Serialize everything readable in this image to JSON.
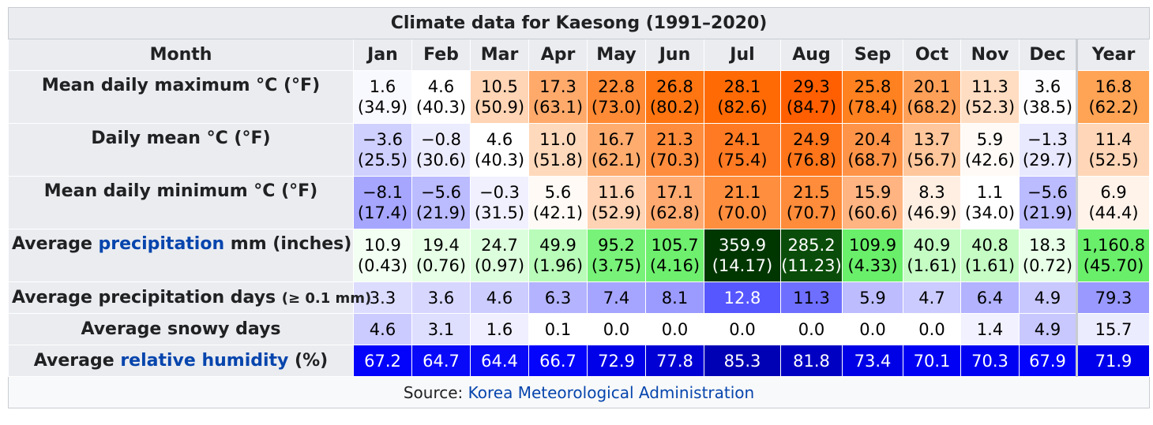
{
  "title": "Climate data for Kaesong (1991–2020)",
  "header": {
    "month_label": "Month",
    "months": [
      "Jan",
      "Feb",
      "Mar",
      "Apr",
      "May",
      "Jun",
      "Jul",
      "Aug",
      "Sep",
      "Oct",
      "Nov",
      "Dec"
    ],
    "year_label": "Year"
  },
  "rows": [
    {
      "label": "Mean daily maximum °C (°F)",
      "label_parts": {
        "prefix": "Mean daily maximum °C (°F)"
      },
      "primary": [
        "1.6",
        "4.6",
        "10.5",
        "17.3",
        "22.8",
        "26.8",
        "28.1",
        "29.3",
        "25.8",
        "20.1",
        "11.3",
        "3.6",
        "16.8"
      ],
      "secondary": [
        "(34.9)",
        "(40.3)",
        "(50.9)",
        "(63.1)",
        "(73.0)",
        "(80.2)",
        "(82.6)",
        "(84.7)",
        "(78.4)",
        "(68.2)",
        "(52.3)",
        "(38.5)",
        "(62.2)"
      ],
      "bg": [
        "#f8f8ff",
        "#ffffff",
        "#ffd5b5",
        "#ffaa6b",
        "#ff8b36",
        "#ff7511",
        "#ff6a05",
        "#ff5f00",
        "#ff811f",
        "#ffa058",
        "#ffddc2",
        "#fdfdff",
        "#ffa354"
      ],
      "fg": [
        "#000000",
        "#000000",
        "#000000",
        "#000000",
        "#000000",
        "#000000",
        "#000000",
        "#000000",
        "#000000",
        "#000000",
        "#000000",
        "#000000",
        "#000000"
      ]
    },
    {
      "label": "Daily mean °C (°F)",
      "primary": [
        "−3.6",
        "−0.8",
        "4.6",
        "11.0",
        "16.7",
        "21.3",
        "24.1",
        "24.9",
        "20.4",
        "13.7",
        "5.9",
        "−1.3",
        "11.4"
      ],
      "secondary": [
        "(25.5)",
        "(30.6)",
        "(40.3)",
        "(51.8)",
        "(62.1)",
        "(70.3)",
        "(75.4)",
        "(76.8)",
        "(68.7)",
        "(56.7)",
        "(42.6)",
        "(29.7)",
        "(52.5)"
      ],
      "bg": [
        "#d0d0ff",
        "#ececff",
        "#ffffff",
        "#ffd9bb",
        "#ffac6e",
        "#ff8d3d",
        "#ff7a22",
        "#ff751a",
        "#ff9448",
        "#ffc79b",
        "#fffaf6",
        "#e8e8ff",
        "#ffd6b7"
      ],
      "fg": [
        "#000000",
        "#000000",
        "#000000",
        "#000000",
        "#000000",
        "#000000",
        "#000000",
        "#000000",
        "#000000",
        "#000000",
        "#000000",
        "#000000",
        "#000000"
      ]
    },
    {
      "label": "Mean daily minimum °C (°F)",
      "primary": [
        "−8.1",
        "−5.6",
        "−0.3",
        "5.6",
        "11.6",
        "17.1",
        "21.1",
        "21.5",
        "15.9",
        "8.3",
        "1.1",
        "−5.6",
        "6.9"
      ],
      "secondary": [
        "(17.4)",
        "(21.9)",
        "(31.5)",
        "(42.1)",
        "(52.9)",
        "(62.8)",
        "(70.0)",
        "(70.7)",
        "(60.6)",
        "(46.9)",
        "(34.0)",
        "(21.9)",
        "(44.4)"
      ],
      "bg": [
        "#a6a6ff",
        "#bbbbff",
        "#f0f0ff",
        "#fffaf5",
        "#ffd3b3",
        "#ffaa70",
        "#ff8e3e",
        "#ff8c3a",
        "#ffb481",
        "#ffefe3",
        "#ffffff",
        "#bbbbff",
        "#fff3ea"
      ],
      "fg": [
        "#000000",
        "#000000",
        "#000000",
        "#000000",
        "#000000",
        "#000000",
        "#000000",
        "#000000",
        "#000000",
        "#000000",
        "#000000",
        "#000000",
        "#000000"
      ]
    },
    {
      "label_prefix": "Average ",
      "label_link": "precipitation",
      "label_suffix": " mm (inches)",
      "primary": [
        "10.9",
        "19.4",
        "24.7",
        "49.9",
        "95.2",
        "105.7",
        "359.9",
        "285.2",
        "109.9",
        "40.9",
        "40.8",
        "18.3",
        "1,160.8"
      ],
      "secondary": [
        "(0.43)",
        "(0.76)",
        "(0.97)",
        "(1.96)",
        "(3.75)",
        "(4.16)",
        "(14.17)",
        "(11.23)",
        "(4.33)",
        "(1.61)",
        "(1.61)",
        "(0.72)",
        "(45.70)"
      ],
      "bg": [
        "#f2fff2",
        "#e6ffe6",
        "#ddfedd",
        "#b9fbb9",
        "#79f279",
        "#6ef06e",
        "#003600",
        "#0a4d0a",
        "#6aef6a",
        "#c4fcc4",
        "#c4fcc4",
        "#e8ffe8",
        "#6aef6a"
      ],
      "fg": [
        "#000000",
        "#000000",
        "#000000",
        "#000000",
        "#000000",
        "#000000",
        "#ffffff",
        "#ffffff",
        "#000000",
        "#000000",
        "#000000",
        "#000000",
        "#000000"
      ]
    },
    {
      "label_main": "Average precipitation days ",
      "label_small": "(≥ 0.1 mm)",
      "values": [
        "3.3",
        "3.6",
        "4.6",
        "6.3",
        "7.4",
        "8.1",
        "12.8",
        "11.3",
        "5.9",
        "4.7",
        "6.4",
        "4.9",
        "79.3"
      ],
      "bg": [
        "#dcdcff",
        "#d6d6ff",
        "#ccccff",
        "#b3b3ff",
        "#a5a5ff",
        "#9b9bff",
        "#5757ff",
        "#6f6fff",
        "#bcbcff",
        "#cbcbff",
        "#b2b2ff",
        "#c8c8ff",
        "#9999ff"
      ],
      "fg": [
        "#000000",
        "#000000",
        "#000000",
        "#000000",
        "#000000",
        "#000000",
        "#ffffff",
        "#000000",
        "#000000",
        "#000000",
        "#000000",
        "#000000",
        "#000000"
      ]
    },
    {
      "label": "Average snowy days",
      "values": [
        "4.6",
        "3.1",
        "1.6",
        "0.1",
        "0.0",
        "0.0",
        "0.0",
        "0.0",
        "0.0",
        "0.0",
        "1.4",
        "4.9",
        "15.7"
      ],
      "bg": [
        "#cccbff",
        "#dedeff",
        "#efefff",
        "#ffffff",
        "#ffffff",
        "#ffffff",
        "#ffffff",
        "#ffffff",
        "#ffffff",
        "#ffffff",
        "#f1f1ff",
        "#c8c8ff",
        "#ececff"
      ],
      "fg": [
        "#000000",
        "#000000",
        "#000000",
        "#000000",
        "#000000",
        "#000000",
        "#000000",
        "#000000",
        "#000000",
        "#000000",
        "#000000",
        "#000000",
        "#000000"
      ]
    },
    {
      "label_prefix": "Average ",
      "label_link": "relative humidity",
      "label_suffix": " (%)",
      "values": [
        "67.2",
        "64.7",
        "64.4",
        "66.7",
        "72.9",
        "77.8",
        "85.3",
        "81.8",
        "73.4",
        "70.1",
        "70.3",
        "67.9",
        "71.9"
      ],
      "bg": [
        "#0303fc",
        "#0909fa",
        "#0a0af9",
        "#0404fc",
        "#0000e8",
        "#0000d4",
        "#0000b4",
        "#0000c3",
        "#0000e6",
        "#0000f4",
        "#0000f3",
        "#0202fd",
        "#0000ec"
      ],
      "fg": [
        "#ffffff",
        "#ffffff",
        "#ffffff",
        "#ffffff",
        "#ffffff",
        "#ffffff",
        "#ffffff",
        "#ffffff",
        "#ffffff",
        "#ffffff",
        "#ffffff",
        "#ffffff",
        "#ffffff"
      ]
    }
  ],
  "source": {
    "prefix": "Source: ",
    "link_text": "Korea Meteorological Administration"
  }
}
